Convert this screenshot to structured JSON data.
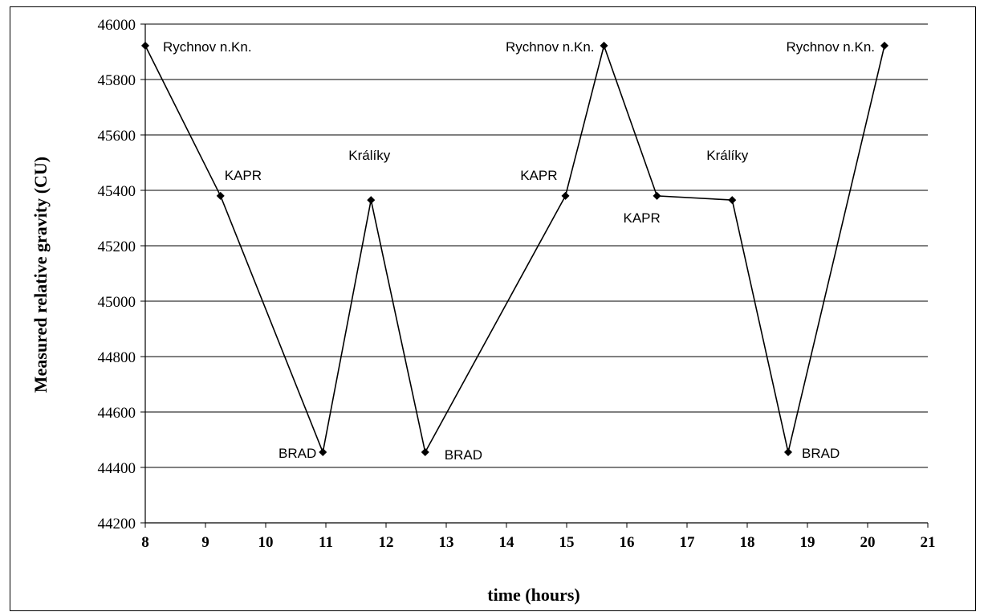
{
  "chart_data": {
    "type": "line",
    "xlabel": "time (hours)",
    "ylabel": "Measured relative gravity (CU)",
    "xlim": [
      8,
      21
    ],
    "ylim": [
      44200,
      46000
    ],
    "x_ticks": [
      8,
      9,
      10,
      11,
      12,
      13,
      14,
      15,
      16,
      17,
      18,
      19,
      20,
      21
    ],
    "y_ticks": [
      44200,
      44400,
      44600,
      44800,
      45000,
      45200,
      45400,
      45600,
      45800,
      46000
    ],
    "grid": "horizontal",
    "line_color": "#000000",
    "marker": "diamond",
    "points": [
      {
        "x": 8.0,
        "y": 45922,
        "label": "Rychnov n.Kn."
      },
      {
        "x": 9.25,
        "y": 45380,
        "label": "KAPR"
      },
      {
        "x": 10.95,
        "y": 44455,
        "label": "BRAD"
      },
      {
        "x": 11.75,
        "y": 45365,
        "label": "Králíky"
      },
      {
        "x": 12.65,
        "y": 44455,
        "label": "BRAD"
      },
      {
        "x": 14.98,
        "y": 45380,
        "label": "KAPR"
      },
      {
        "x": 15.62,
        "y": 45922,
        "label": "Rychnov n.Kn."
      },
      {
        "x": 16.5,
        "y": 45380,
        "label": "KAPR"
      },
      {
        "x": 17.75,
        "y": 45365,
        "label": "Králíky"
      },
      {
        "x": 18.68,
        "y": 44455,
        "label": "BRAD"
      },
      {
        "x": 20.28,
        "y": 45922,
        "label": "Rychnov n.Kn."
      }
    ]
  }
}
